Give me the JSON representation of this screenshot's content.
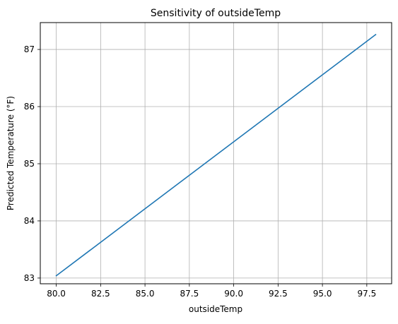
{
  "chart_data": {
    "type": "line",
    "title": "Sensitivity of outsideTemp",
    "xlabel": "outsideTemp",
    "ylabel": "Predicted Temperature (°F)",
    "xlim": [
      79.1,
      98.9
    ],
    "ylim": [
      82.9,
      87.47
    ],
    "xticks": [
      80.0,
      82.5,
      85.0,
      87.5,
      90.0,
      92.5,
      95.0,
      97.5
    ],
    "xtick_labels": [
      "80.0",
      "82.5",
      "85.0",
      "87.5",
      "90.0",
      "92.5",
      "95.0",
      "97.5"
    ],
    "yticks": [
      83,
      84,
      85,
      86,
      87
    ],
    "ytick_labels": [
      "83",
      "84",
      "85",
      "86",
      "87"
    ],
    "grid": true,
    "series": [
      {
        "color": "#1f77b4",
        "x": [
          80.0,
          98.0
        ],
        "y": [
          83.04,
          87.26
        ]
      }
    ]
  }
}
